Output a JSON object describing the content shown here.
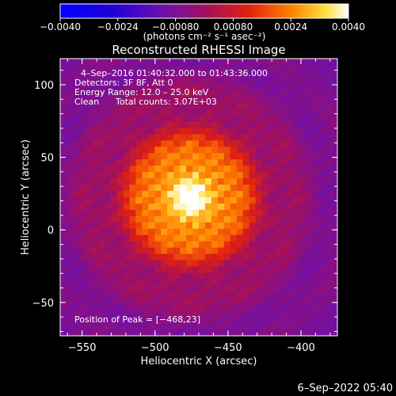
{
  "chart_data": {
    "type": "heatmap",
    "title": "Reconstructed RHESSI Image",
    "xlabel": "Heliocentric X (arcsec)",
    "ylabel": "Heliocentric Y (arcsec)",
    "xlim": [
      -565,
      -375
    ],
    "ylim": [
      -73,
      118
    ],
    "xticks": [
      -550,
      -500,
      -450,
      -400
    ],
    "yticks": [
      -50,
      0,
      50,
      100
    ],
    "xtick_labels": [
      "−550",
      "−500",
      "−450",
      "−400"
    ],
    "ytick_labels": [
      "−50",
      "0",
      "50",
      "100"
    ],
    "colorbar": {
      "range": [
        -0.004,
        0.004
      ],
      "ticks": [
        -0.004,
        -0.0024,
        -0.0008,
        0.0008,
        0.0024,
        0.004
      ],
      "tick_labels": [
        "−0.0040",
        "−0.0024",
        "−0.00080",
        "0.00080",
        "0.0024",
        "0.0040"
      ],
      "unit_label": "(photons cm⁻² s⁻¹ asec⁻²)",
      "colormap": "thermal"
    },
    "annotations": {
      "time_range": "4–Sep–2016 01:40:32.000 to 01:43:36.000",
      "detectors": "Detectors: 3F 8F, Att 0",
      "energy_range": "Energy Range: 12.0 – 25.0 keV",
      "clean": "Clean",
      "total_counts": "Total counts: 3.07E+03",
      "peak": "Position of Peak = [−468,23]"
    },
    "peak_position": [
      -468,
      23
    ],
    "source": {
      "center": [
        -476,
        22
      ],
      "sigma": 30
    },
    "footer": "6–Sep–2022 05:40"
  }
}
